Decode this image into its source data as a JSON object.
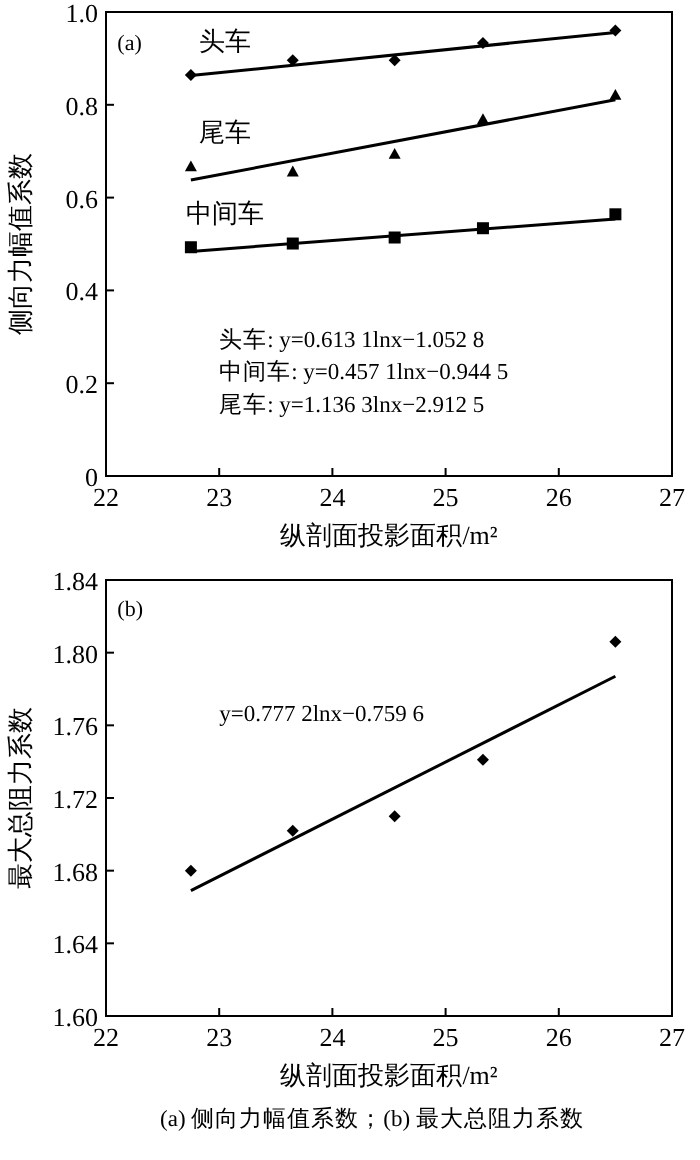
{
  "chart_data": [
    {
      "type": "scatter",
      "xlabel": "纵剖面投影面积/m²",
      "ylabel": "侧向力幅值系数",
      "xlim": [
        22,
        27
      ],
      "ylim": [
        0,
        1
      ],
      "xticks": [
        22,
        23,
        24,
        25,
        26,
        27
      ],
      "yticks": [
        0,
        0.2,
        0.4,
        0.6,
        0.8,
        {
          "value": 1,
          "label": "1.0"
        }
      ],
      "series": [
        {
          "name": "头车",
          "color": "#000000",
          "marker": "diamond",
          "x": [
            22.75,
            23.65,
            24.55,
            25.33,
            26.5
          ],
          "values": [
            0.864,
            0.896,
            0.896,
            0.933,
            0.96
          ]
        },
        {
          "name": "尾车",
          "color": "#000000",
          "marker": "triangle",
          "x": [
            22.75,
            23.65,
            24.55,
            25.33,
            26.5
          ],
          "values": [
            0.667,
            0.656,
            0.694,
            0.769,
            0.821
          ]
        },
        {
          "name": "中间车",
          "color": "#000000",
          "marker": "square",
          "x": [
            22.75,
            23.65,
            24.55,
            25.33,
            26.5
          ],
          "values": [
            0.493,
            0.501,
            0.514,
            0.534,
            0.564
          ]
        },
        {
          "type": "line",
          "color": "#000000",
          "x": [
            22.75,
            26.5
          ],
          "values": [
            0.863,
            0.956
          ]
        },
        {
          "type": "line",
          "color": "#000000",
          "x": [
            22.75,
            26.5
          ],
          "values": [
            0.638,
            0.811
          ]
        },
        {
          "type": "line",
          "color": "#000000",
          "x": [
            22.75,
            26.5
          ],
          "values": [
            0.484,
            0.554
          ]
        }
      ],
      "annotations": [
        "(a)",
        "头车: y=0.613 1lnx−1.052 8",
        "中间车: y=0.457 1lnx−0.944 5",
        "尾车: y=1.136 3lnx−2.912 5"
      ]
    },
    {
      "type": "scatter",
      "xlabel": "纵剖面投影面积/m²",
      "ylabel": "最大总阻力系数",
      "xlim": [
        22,
        27
      ],
      "ylim": [
        1.6,
        1.84
      ],
      "xticks": [
        22,
        23,
        24,
        25,
        26,
        27
      ],
      "yticks": [
        {
          "value": 1.6,
          "label": "1.60"
        },
        {
          "value": 1.64,
          "label": "1.64"
        },
        {
          "value": 1.68,
          "label": "1.68"
        },
        {
          "value": 1.72,
          "label": "1.72"
        },
        {
          "value": 1.76,
          "label": "1.76"
        },
        {
          "value": 1.8,
          "label": "1.80"
        },
        {
          "value": 1.84,
          "label": "1.84"
        }
      ],
      "series": [
        {
          "color": "#000000",
          "marker": "diamond",
          "x": [
            22.75,
            23.65,
            24.55,
            25.33,
            26.5
          ],
          "values": [
            1.68,
            1.702,
            1.71,
            1.741,
            1.806
          ]
        },
        {
          "type": "line",
          "color": "#000000",
          "x": [
            22.75,
            26.5
          ],
          "values": [
            1.669,
            1.787
          ]
        }
      ],
      "annotations": [
        "(b)",
        "y=0.777 2lnx−0.759 6",
        "(a) 侧向力幅值系数；(b) 最大总阻力系数"
      ]
    }
  ]
}
